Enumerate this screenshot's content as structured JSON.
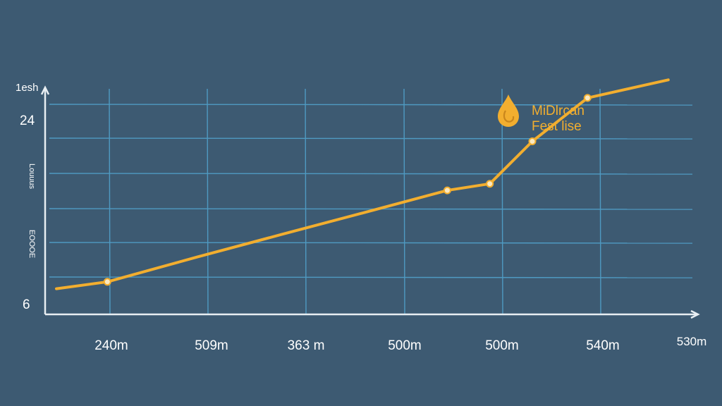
{
  "chart_data": {
    "type": "line",
    "x_tick_labels": [
      "240m",
      "509m",
      "363 m",
      "500m",
      "500m",
      "540m",
      "530m"
    ],
    "y_tick_labels": [
      "24",
      "6"
    ],
    "y_axis_labels": [
      "1esh",
      "Louuus",
      "EOOOE"
    ],
    "legend": {
      "icon": "drop-icon",
      "lines": [
        "MiDlrcan",
        "Fest lise"
      ],
      "placement": "top-right"
    },
    "series": [
      {
        "line_color": "#f2ae2f",
        "x": [
          -0.6,
          0,
          1.05,
          2.05,
          3,
          4,
          4.5,
          5,
          5.65,
          6.6
        ],
        "y": [
          7.8,
          9.9,
          17.4,
          24.3,
          30.8,
          37.7,
          39.7,
          52.6,
          65.8,
          71.3
        ],
        "markers": [
          false,
          true,
          false,
          false,
          false,
          true,
          true,
          true,
          true,
          false
        ]
      }
    ],
    "xlim": [
      -0.65,
      6.95
    ],
    "ylim": [
      0,
      72
    ],
    "grid": true,
    "colors": {
      "background": "#3d5a72",
      "grid": "#4f9ac2",
      "axis": "#e8eef2",
      "line": "#f2ae2f",
      "marker_fill": "#fbe9c0"
    }
  }
}
